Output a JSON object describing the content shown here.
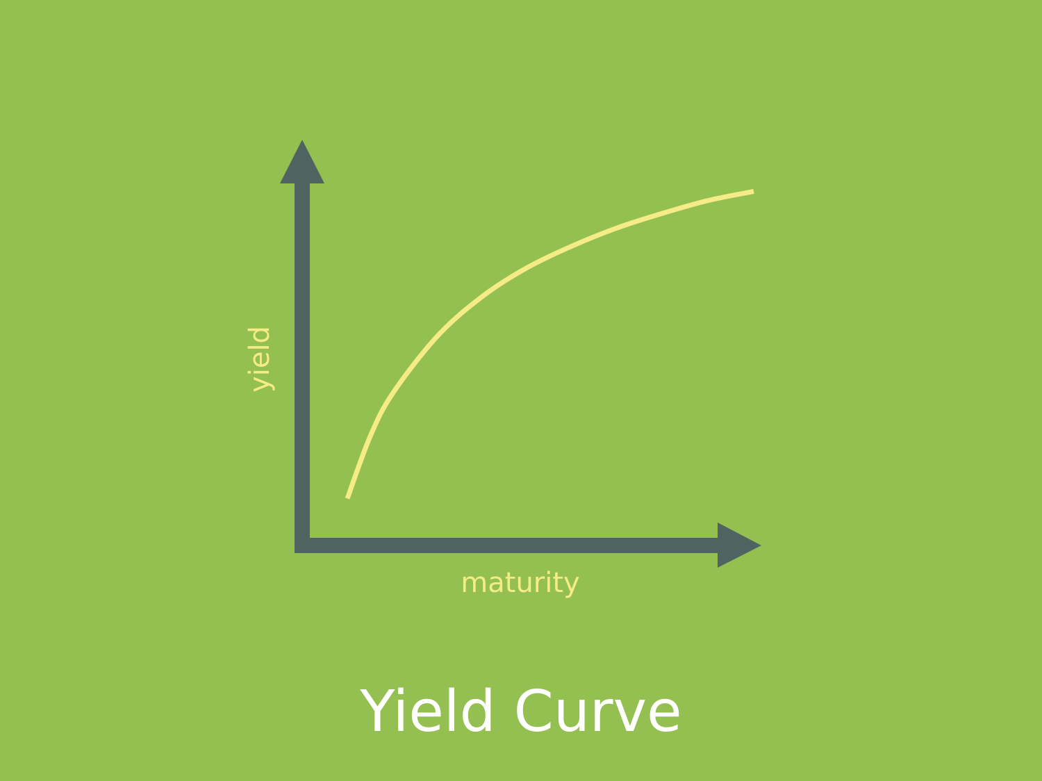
{
  "colors": {
    "background": "#93c050",
    "axis": "#4f6461",
    "curve": "#f5eb87",
    "axis_label": "#f5eb87",
    "title": "#ffffff"
  },
  "chart_data": {
    "type": "line",
    "title": "Yield Curve",
    "xlabel": "maturity",
    "ylabel": "yield",
    "xlim": [
      0,
      1
    ],
    "ylim": [
      0,
      1
    ],
    "grid": false,
    "legend": "none",
    "series": [
      {
        "x": [
          0.1,
          0.15,
          0.2,
          0.3,
          0.4,
          0.5,
          0.6,
          0.7,
          0.8,
          0.9,
          1.0
        ],
        "values": [
          0.13,
          0.3,
          0.42,
          0.58,
          0.69,
          0.77,
          0.83,
          0.88,
          0.92,
          0.955,
          0.98
        ]
      }
    ]
  }
}
